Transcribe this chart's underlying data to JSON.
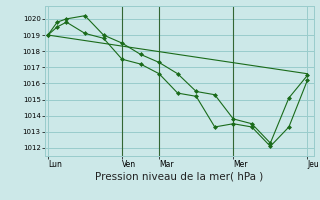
{
  "bg_color": "#cce8e8",
  "grid_color": "#99cccc",
  "line_color": "#1a6b1a",
  "marker_color": "#1a6b1a",
  "xlabel": "Pression niveau de la mer( hPa )",
  "xlabel_fontsize": 7.5,
  "ylim": [
    1011.5,
    1020.8
  ],
  "yticks": [
    1012,
    1013,
    1014,
    1015,
    1016,
    1017,
    1018,
    1019,
    1020
  ],
  "xtick_labels": [
    "Lun",
    "Ven",
    "Mar",
    "Mer",
    "Jeu"
  ],
  "xtick_positions": [
    0,
    24,
    36,
    60,
    84
  ],
  "vlines": [
    24,
    36,
    60
  ],
  "series1": {
    "x": [
      0,
      3,
      6,
      12,
      18,
      24,
      30,
      36,
      42,
      48,
      54,
      60,
      66,
      72,
      78,
      84
    ],
    "y": [
      1019.0,
      1019.8,
      1020.0,
      1020.2,
      1019.0,
      1018.5,
      1017.8,
      1017.3,
      1016.6,
      1015.5,
      1015.3,
      1013.8,
      1013.5,
      1012.3,
      1015.1,
      1016.5
    ]
  },
  "series2": {
    "x": [
      0,
      3,
      6,
      12,
      18,
      24,
      30,
      36,
      42,
      48,
      54,
      60,
      66,
      72,
      78,
      84
    ],
    "y": [
      1019.0,
      1019.5,
      1019.8,
      1019.1,
      1018.8,
      1017.5,
      1017.2,
      1016.6,
      1015.4,
      1015.2,
      1013.3,
      1013.5,
      1013.3,
      1012.1,
      1013.3,
      1016.2
    ]
  },
  "series3": {
    "x": [
      0,
      84
    ],
    "y": [
      1019.0,
      1016.6
    ]
  }
}
